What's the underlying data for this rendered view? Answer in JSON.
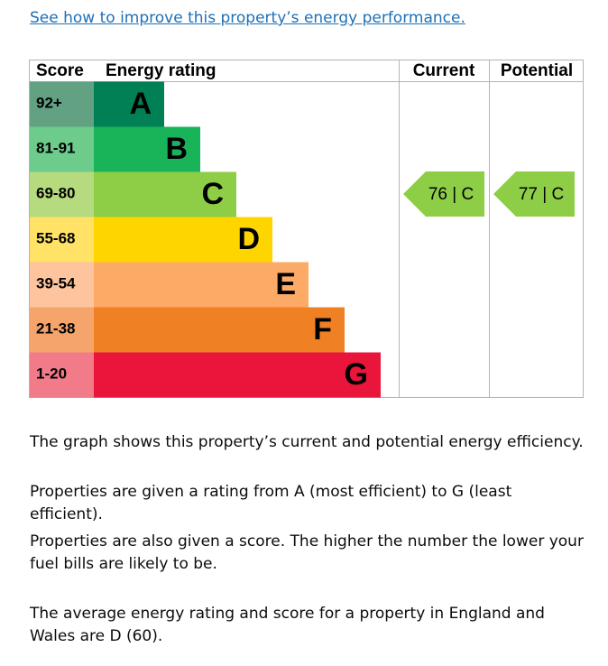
{
  "link": "See how to improve this property’s energy performance.",
  "table": {
    "headers": [
      "Score",
      "Energy rating",
      "Current",
      "Potential"
    ],
    "bands": [
      {
        "score": "92+",
        "rating": "A"
      },
      {
        "score": "81-91",
        "rating": "B"
      },
      {
        "score": "69-80",
        "rating": "C"
      },
      {
        "score": "55-68",
        "rating": "D"
      },
      {
        "score": "39-54",
        "rating": "E"
      },
      {
        "score": "21-38",
        "rating": "F"
      },
      {
        "score": "1-20",
        "rating": "G"
      }
    ],
    "current": "76 | C",
    "potential": "77 | C"
  },
  "paragraphs": [
    "The graph shows this property’s current and potential energy efficiency.",
    "Properties are given a rating from A (most efficient) to G (least efficient).",
    "Properties are also given a score. The higher the number the lower your fuel bills are likely to be.",
    "The average energy rating and score for a property in England and Wales are D (60)."
  ]
}
